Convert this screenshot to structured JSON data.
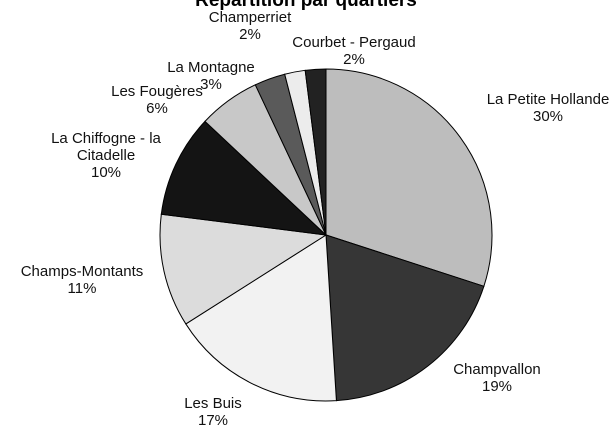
{
  "chart_data": {
    "type": "pie",
    "title": "Répartition par quartiers",
    "categories": [
      "La Petite Hollande",
      "Champvallon",
      "Les Buis",
      "Champs-Montants",
      "La Chiffogne - la Citadelle",
      "Les Fougères",
      "La Montagne",
      "Champerriet",
      "Courbet - Pergaud"
    ],
    "values": [
      30,
      19,
      17,
      11,
      10,
      6,
      3,
      2,
      2
    ],
    "value_labels": [
      "30%",
      "19%",
      "17%",
      "11%",
      "10%",
      "6%",
      "3%",
      "2%",
      "2%"
    ],
    "colors": [
      "#bdbdbd",
      "#363636",
      "#f2f2f2",
      "#dcdcdc",
      "#141414",
      "#c8c8c8",
      "#5a5a5a",
      "#ececec",
      "#222222"
    ]
  }
}
